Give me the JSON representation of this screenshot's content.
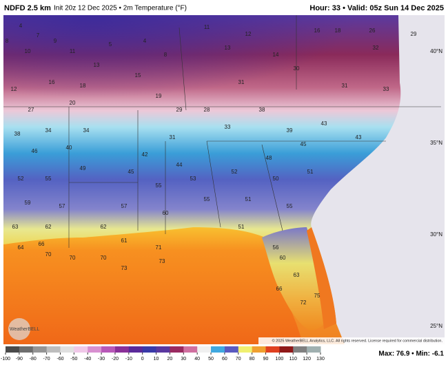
{
  "header": {
    "title": "NDFD 2.5 km",
    "subtitle": "Init 20z 12 Dec 2025 • 2m Temperature (°F)",
    "valid": "Hour: 33 • Valid: 05z Sun 14 Dec 2025"
  },
  "latitude_labels": [
    "40°N",
    "35°N",
    "30°N",
    "25°N"
  ],
  "stations": [
    4,
    7,
    8,
    9,
    10,
    11,
    13,
    12,
    16,
    18,
    27,
    20,
    38,
    34,
    34,
    46,
    40,
    52,
    55,
    49,
    59,
    57,
    63,
    62,
    64,
    70,
    70,
    66,
    5,
    4,
    8,
    15,
    19,
    29,
    28,
    33,
    31,
    42,
    44,
    45,
    55,
    53,
    55,
    57,
    60,
    62,
    61,
    71,
    70,
    73,
    73,
    11,
    13,
    12,
    14,
    16,
    18,
    26,
    29,
    32,
    30,
    31,
    33,
    31,
    38,
    39,
    43,
    43,
    45,
    48,
    51,
    52,
    51,
    50,
    55,
    51,
    56,
    60,
    63,
    66,
    72,
    75
  ],
  "colorbar": {
    "ticks": [
      -100,
      -90,
      -80,
      -70,
      -60,
      -50,
      -40,
      -30,
      -20,
      -10,
      0,
      10,
      20,
      30,
      40,
      50,
      60,
      70,
      80,
      90,
      100,
      110,
      120,
      130
    ],
    "colors": [
      "#4a4a4a",
      "#6e6e6e",
      "#959595",
      "#bdbdbd",
      "#e0e0e0",
      "#f0c8e8",
      "#d890d0",
      "#b858b8",
      "#8a3098",
      "#5a2a9a",
      "#3a3aa8",
      "#5a38a0",
      "#9a2a60",
      "#d070a0",
      "#f0f0f0",
      "#40a8e0",
      "#5a5ac0",
      "#f0f070",
      "#f0a030",
      "#e04020",
      "#901818",
      "#808080",
      "#a0b0b0",
      "#508080"
    ]
  },
  "copyright": "© 2025 WeatherBELL Analytics, LLC. All rights reserved. License required for commercial distribution.",
  "logo": "WeatherBELL",
  "footer": "Max: 76.9 • Min: -6.1"
}
